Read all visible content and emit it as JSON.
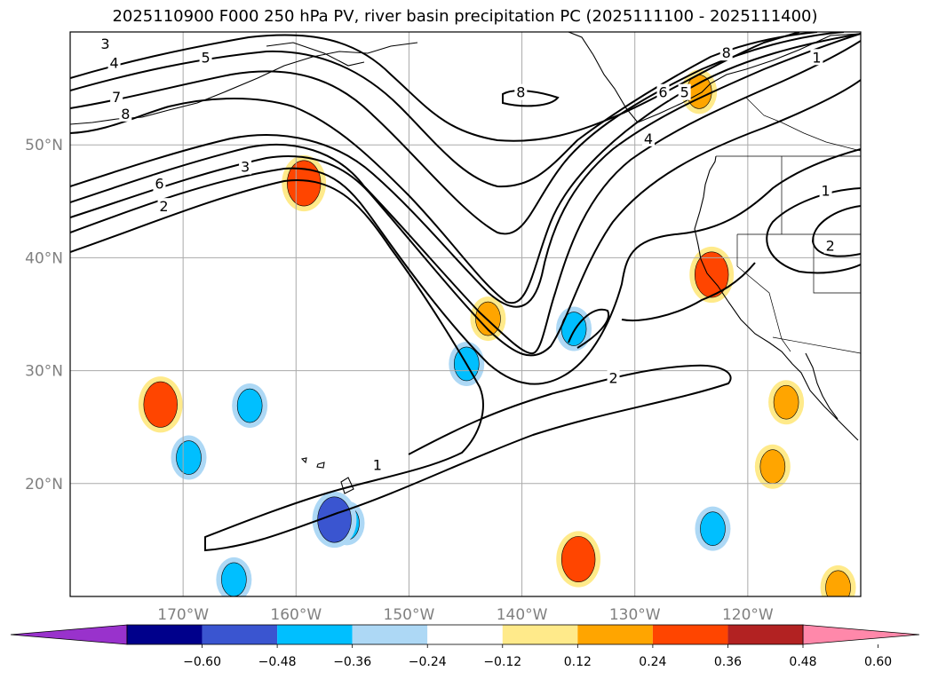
{
  "title": "2025110900 F000 250 hPa PV, river basin precipitation PC (2025111100 - 2025111400)",
  "chart_data": {
    "type": "contour-map",
    "title": "2025110900 F000 250 hPa PV, river basin precipitation PC (2025111100 - 2025111400)",
    "map_extent": {
      "lon_min": -180,
      "lon_max": -110,
      "lat_min": 10,
      "lat_max": 60
    },
    "grid": true,
    "x_ticks": [
      {
        "lon": -170,
        "label": "170°W"
      },
      {
        "lon": -160,
        "label": "160°W"
      },
      {
        "lon": -150,
        "label": "150°W"
      },
      {
        "lon": -140,
        "label": "140°W"
      },
      {
        "lon": -130,
        "label": "130°W"
      },
      {
        "lon": -120,
        "label": "120°W"
      }
    ],
    "y_ticks": [
      {
        "lat": 20,
        "label": "20°N"
      },
      {
        "lat": 30,
        "label": "30°N"
      },
      {
        "lat": 40,
        "label": "40°N"
      },
      {
        "lat": 50,
        "label": "50°N"
      }
    ],
    "colorbar": {
      "extend": "both",
      "levels": [
        -0.6,
        -0.48,
        -0.36,
        -0.24,
        -0.12,
        0.12,
        0.24,
        0.36,
        0.48,
        0.6
      ],
      "tick_labels": [
        "−0.60",
        "−0.48",
        "−0.36",
        "−0.24",
        "−0.12",
        "0.12",
        "0.24",
        "0.36",
        "0.48",
        "0.60"
      ],
      "colors": [
        "#9932cc",
        "#00008b",
        "#3a55d0",
        "#00bfff",
        "#add8f5",
        "#ffffff",
        "#ffea8a",
        "#ffa500",
        "#ff4500",
        "#b22222",
        "#ff88aa"
      ]
    },
    "pv_contour_labels": [
      {
        "text": "3",
        "lon": -176.9,
        "lat": 58.9
      },
      {
        "text": "4",
        "lon": -176.1,
        "lat": 57.2
      },
      {
        "text": "5",
        "lon": -168.0,
        "lat": 57.7
      },
      {
        "text": "7",
        "lon": -175.9,
        "lat": 54.2
      },
      {
        "text": "8",
        "lon": -175.1,
        "lat": 52.7
      },
      {
        "text": "3",
        "lon": -164.5,
        "lat": 48.0
      },
      {
        "text": "6",
        "lon": -172.1,
        "lat": 46.5
      },
      {
        "text": "2",
        "lon": -171.7,
        "lat": 44.5
      },
      {
        "text": "8",
        "lon": -140.1,
        "lat": 54.6
      },
      {
        "text": "8",
        "lon": -121.9,
        "lat": 58.1
      },
      {
        "text": "6",
        "lon": -127.5,
        "lat": 54.6
      },
      {
        "text": "5",
        "lon": -125.6,
        "lat": 54.6
      },
      {
        "text": "4",
        "lon": -128.8,
        "lat": 50.5
      },
      {
        "text": "1",
        "lon": -113.9,
        "lat": 57.7
      },
      {
        "text": "1",
        "lon": -113.1,
        "lat": 45.9
      },
      {
        "text": "2",
        "lon": -112.7,
        "lat": 41.0
      },
      {
        "text": "2",
        "lon": -131.9,
        "lat": 29.3
      },
      {
        "text": "1",
        "lon": -152.8,
        "lat": 21.6
      }
    ],
    "precip_blobs": [
      {
        "lon": -159.1,
        "lat": 46.7,
        "level": 0.24
      },
      {
        "lon": -159.3,
        "lat": 46.6,
        "level": 0.36
      },
      {
        "lon": -123.0,
        "lat": 38.8,
        "level": 0.24
      },
      {
        "lon": -123.2,
        "lat": 38.5,
        "level": 0.36
      },
      {
        "lon": -116.6,
        "lat": 27.2,
        "level": 0.24
      },
      {
        "lon": -172.1,
        "lat": 27.1,
        "level": 0.24
      },
      {
        "lon": -172.0,
        "lat": 27.0,
        "level": 0.36
      },
      {
        "lon": -135.1,
        "lat": 13.4,
        "level": 0.24
      },
      {
        "lon": -135.0,
        "lat": 13.3,
        "level": 0.36
      },
      {
        "lon": -155.5,
        "lat": 16.5,
        "level": -0.24
      },
      {
        "lon": -156.6,
        "lat": 16.8,
        "level": -0.36
      },
      {
        "lon": -144.9,
        "lat": 30.6,
        "level": -0.24
      },
      {
        "lon": -135.4,
        "lat": 33.7,
        "level": -0.24
      },
      {
        "lon": -164.1,
        "lat": 26.9,
        "level": -0.24
      },
      {
        "lon": -169.5,
        "lat": 22.3,
        "level": -0.24
      },
      {
        "lon": -123.1,
        "lat": 16.0,
        "level": -0.24
      },
      {
        "lon": -165.5,
        "lat": 11.5,
        "level": -0.24
      },
      {
        "lon": -143.0,
        "lat": 34.6,
        "level": 0.24
      },
      {
        "lon": -117.8,
        "lat": 21.5,
        "level": 0.24
      },
      {
        "lon": -112.0,
        "lat": 10.8,
        "level": 0.24
      },
      {
        "lon": -124.3,
        "lat": 54.7,
        "level": 0.24
      }
    ]
  }
}
